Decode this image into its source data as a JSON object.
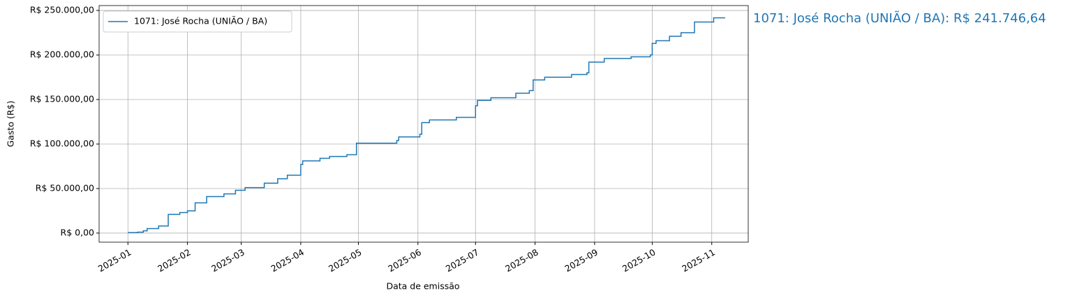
{
  "chart_data": {
    "type": "step",
    "annotation": "1071: José Rocha (UNIÃO / BA): R$ 241.746,64",
    "xlabel": "Data de emissão",
    "ylabel": "Gasto (R$)",
    "legend": "upper left",
    "grid": true,
    "series": [
      {
        "name": "1071: José Rocha (UNIÃO / BA)",
        "color": "#1f77b4",
        "x": [
          "2025-01-01",
          "2025-01-06",
          "2025-01-09",
          "2025-01-11",
          "2025-01-17",
          "2025-01-22",
          "2025-01-28",
          "2025-02-01",
          "2025-02-05",
          "2025-02-11",
          "2025-02-20",
          "2025-02-26",
          "2025-03-03",
          "2025-03-13",
          "2025-03-20",
          "2025-03-25",
          "2025-04-01",
          "2025-04-02",
          "2025-04-11",
          "2025-04-16",
          "2025-04-25",
          "2025-04-30",
          "2025-05-21",
          "2025-05-22",
          "2025-06-02",
          "2025-06-03",
          "2025-06-07",
          "2025-06-21",
          "2025-07-01",
          "2025-07-02",
          "2025-07-09",
          "2025-07-22",
          "2025-07-29",
          "2025-07-31",
          "2025-08-06",
          "2025-08-20",
          "2025-08-28",
          "2025-08-29",
          "2025-09-06",
          "2025-09-20",
          "2025-09-30",
          "2025-10-01",
          "2025-10-03",
          "2025-10-10",
          "2025-10-16",
          "2025-10-23",
          "2025-11-02",
          "2025-11-08"
        ],
        "values": [
          500,
          1000,
          2500,
          5000,
          8000,
          21000,
          23000,
          25000,
          34000,
          41000,
          44000,
          48000,
          51000,
          56000,
          61000,
          65000,
          77000,
          81000,
          84000,
          86000,
          88000,
          101000,
          104000,
          108000,
          111000,
          124000,
          127000,
          130000,
          143000,
          149000,
          152000,
          157000,
          160000,
          172000,
          175000,
          178000,
          180000,
          192000,
          196000,
          198000,
          200000,
          213000,
          216000,
          221000,
          225000,
          237000,
          241746.64,
          241746.64
        ]
      }
    ],
    "xlim": [
      "2024-12-17",
      "2025-11-20"
    ],
    "xticks": [
      {
        "value": "2025-01-01",
        "label": "2025-01"
      },
      {
        "value": "2025-02-01",
        "label": "2025-02"
      },
      {
        "value": "2025-03-01",
        "label": "2025-03"
      },
      {
        "value": "2025-04-01",
        "label": "2025-04"
      },
      {
        "value": "2025-05-01",
        "label": "2025-05"
      },
      {
        "value": "2025-06-01",
        "label": "2025-06"
      },
      {
        "value": "2025-07-01",
        "label": "2025-07"
      },
      {
        "value": "2025-08-01",
        "label": "2025-08"
      },
      {
        "value": "2025-09-01",
        "label": "2025-09"
      },
      {
        "value": "2025-10-01",
        "label": "2025-10"
      },
      {
        "value": "2025-11-01",
        "label": "2025-11"
      }
    ],
    "ylim": [
      -10200,
      255500
    ],
    "yticks": [
      {
        "value": 0,
        "label": "R$ 0,00"
      },
      {
        "value": 50000,
        "label": "R$ 50.000,00"
      },
      {
        "value": 100000,
        "label": "R$ 100.000,00"
      },
      {
        "value": 150000,
        "label": "R$ 150.000,00"
      },
      {
        "value": 200000,
        "label": "R$ 200.000,00"
      },
      {
        "value": 250000,
        "label": "R$ 250.000,00"
      }
    ]
  }
}
